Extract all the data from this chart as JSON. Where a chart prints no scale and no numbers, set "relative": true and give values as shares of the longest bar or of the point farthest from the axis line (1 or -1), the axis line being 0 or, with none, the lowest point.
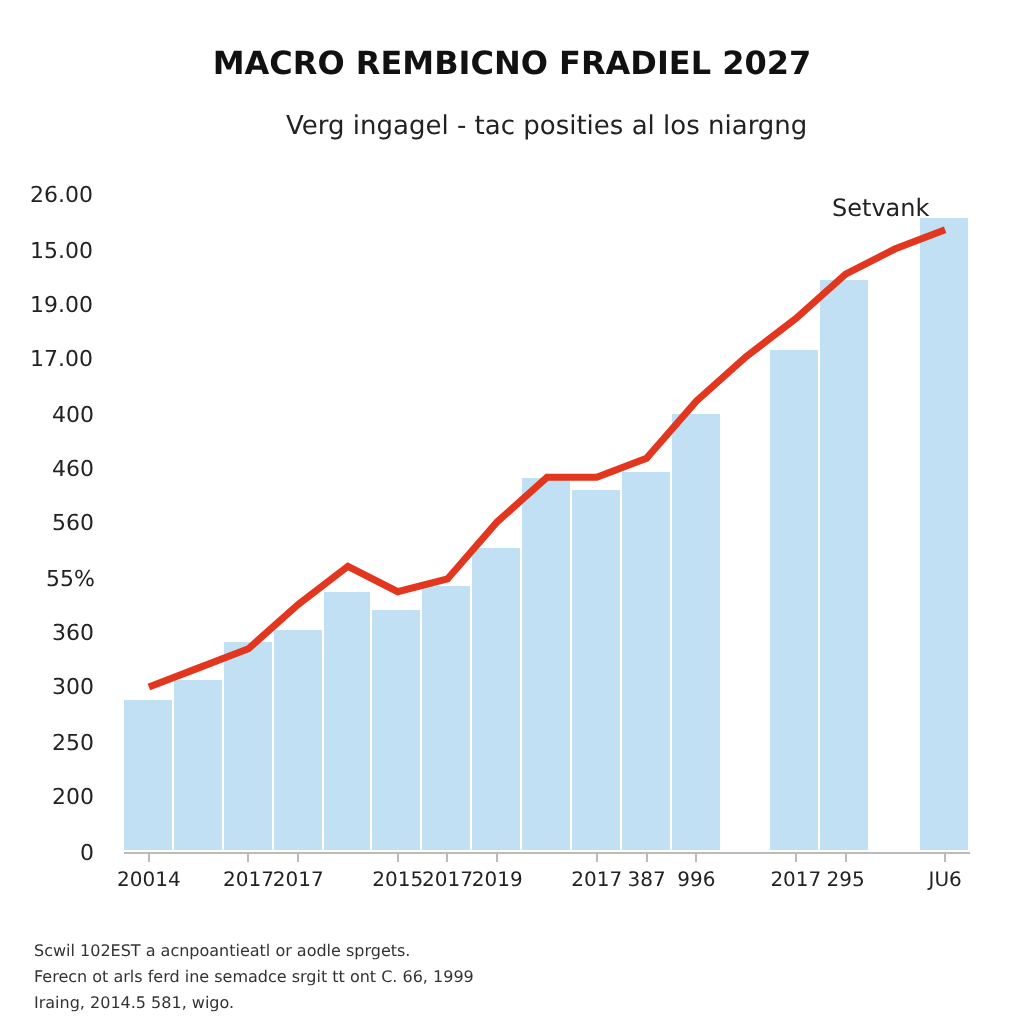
{
  "chart_data": {
    "type": "bar",
    "title": "MACRO REMBICNO FRADIEL 2027",
    "subtitle": "Verg ingagel - tac posities al los niargng",
    "categories": [
      "20014",
      null,
      "2017",
      "2017",
      null,
      "2015",
      "2017",
      "2019",
      null,
      "2017",
      "387",
      "996",
      null,
      "2017",
      "295",
      null,
      "JU6"
    ],
    "relative": true,
    "series": [
      {
        "color": "#c2e0f4",
        "values": [
          0.24,
          0.27,
          0.33,
          0.35,
          0.41,
          0.38,
          0.42,
          0.48,
          0.59,
          0.57,
          0.6,
          0.69,
          null,
          0.79,
          0.9,
          null,
          1
        ]
      },
      {
        "type": "line",
        "name": "Setvank",
        "color": "#e2361e",
        "values": [
          0.26,
          0.29,
          0.32,
          0.39,
          0.45,
          0.41,
          0.43,
          0.52,
          0.59,
          0.59,
          0.62,
          0.71,
          0.78,
          0.84,
          0.91,
          0.95,
          0.98
        ]
      }
    ],
    "legend": false,
    "marker": "none",
    "line_style": "solid",
    "annotations": [
      "26.00\n15.00\n19.00\n17.00\n400\n460\n560\n55%\n360\n300\n250\n200\n0",
      "Scwil 102EST a acnpoantieatl or aodle sprgets.",
      "Ferecn ot arls ferd ine semadce srgit tt ont C. 66, 1999",
      "Iraing, 2014.5 581, wigo."
    ]
  }
}
